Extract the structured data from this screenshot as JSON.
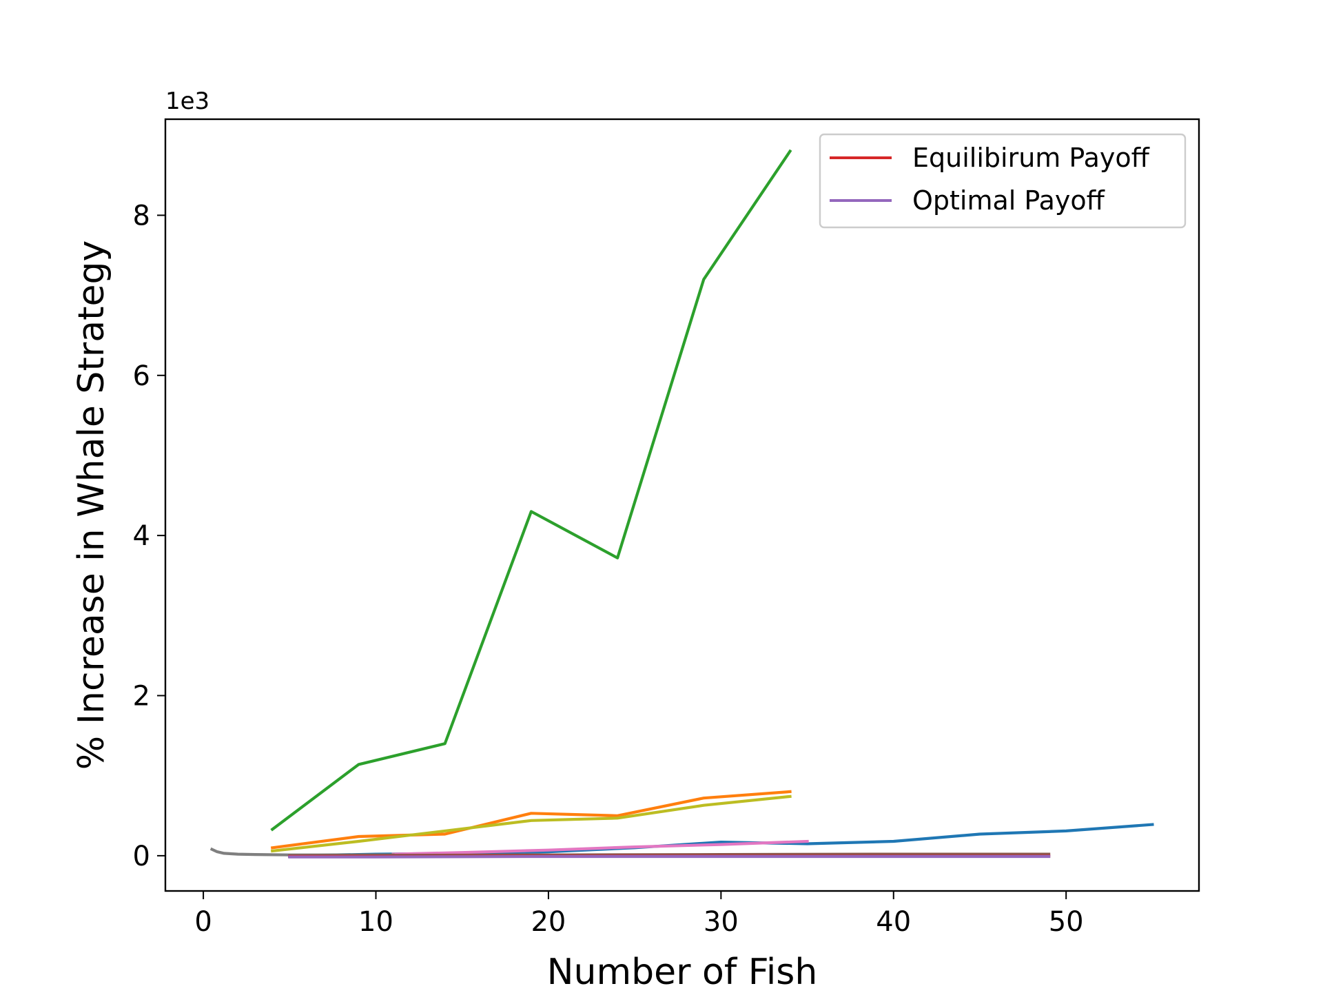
{
  "chart_data": {
    "type": "line",
    "title": "",
    "xlabel": "Number of Fish",
    "ylabel": "% Increase in Whale Strategy",
    "offset_text": "1e3",
    "xlim": [
      -2.2,
      57.7
    ],
    "ylim": [
      -0.44,
      9.2
    ],
    "xticks": [
      0,
      10,
      20,
      30,
      40,
      50
    ],
    "yticks": [
      0,
      2,
      4,
      6,
      8
    ],
    "grid": false,
    "legend_position": "top-right",
    "legend": [
      {
        "name": "Equilibirum Payoff",
        "color": "#d62728"
      },
      {
        "name": "Optimal Payoff",
        "color": "#9467bd"
      }
    ],
    "series": [
      {
        "color": "#2ca02c",
        "x": [
          4,
          9,
          14,
          19,
          24,
          29,
          34
        ],
        "y": [
          0.33,
          1.14,
          1.4,
          4.3,
          3.72,
          7.2,
          8.8
        ]
      },
      {
        "color": "#ff7f0e",
        "x": [
          4,
          9,
          14,
          19,
          24,
          29,
          34
        ],
        "y": [
          0.1,
          0.24,
          0.27,
          0.53,
          0.5,
          0.72,
          0.8
        ]
      },
      {
        "color": "#bcbd22",
        "x": [
          4,
          9,
          14,
          19,
          24,
          29,
          34
        ],
        "y": [
          0.06,
          0.18,
          0.31,
          0.44,
          0.47,
          0.63,
          0.74
        ]
      },
      {
        "color": "#1f77b4",
        "x": [
          5,
          10,
          15,
          20,
          25,
          30,
          35,
          40,
          45,
          50,
          55
        ],
        "y": [
          0.0,
          0.02,
          0.03,
          0.05,
          0.1,
          0.17,
          0.15,
          0.18,
          0.27,
          0.31,
          0.39
        ]
      },
      {
        "color": "#e377c2",
        "x": [
          11,
          15,
          20,
          25,
          30,
          35
        ],
        "y": [
          0.02,
          0.04,
          0.07,
          0.11,
          0.14,
          0.18
        ]
      },
      {
        "color": "#7f7f7f",
        "x": [
          0.5,
          0.8,
          1.2,
          2,
          3,
          5,
          8,
          11
        ],
        "y": [
          0.08,
          0.05,
          0.03,
          0.02,
          0.015,
          0.01,
          0.01,
          0.01
        ]
      },
      {
        "color": "#8c564b",
        "x": [
          5,
          10,
          20,
          30,
          40,
          49
        ],
        "y": [
          0.0,
          0.005,
          0.01,
          0.015,
          0.02,
          0.02
        ]
      },
      {
        "color": "#d62728",
        "x": [
          5,
          10,
          20,
          30,
          40,
          49
        ],
        "y": [
          -0.01,
          -0.01,
          -0.005,
          -0.005,
          -0.005,
          -0.005
        ]
      },
      {
        "color": "#9467bd",
        "x": [
          5,
          10,
          20,
          30,
          40,
          49
        ],
        "y": [
          -0.015,
          -0.015,
          -0.01,
          -0.01,
          -0.01,
          -0.01
        ]
      }
    ]
  }
}
